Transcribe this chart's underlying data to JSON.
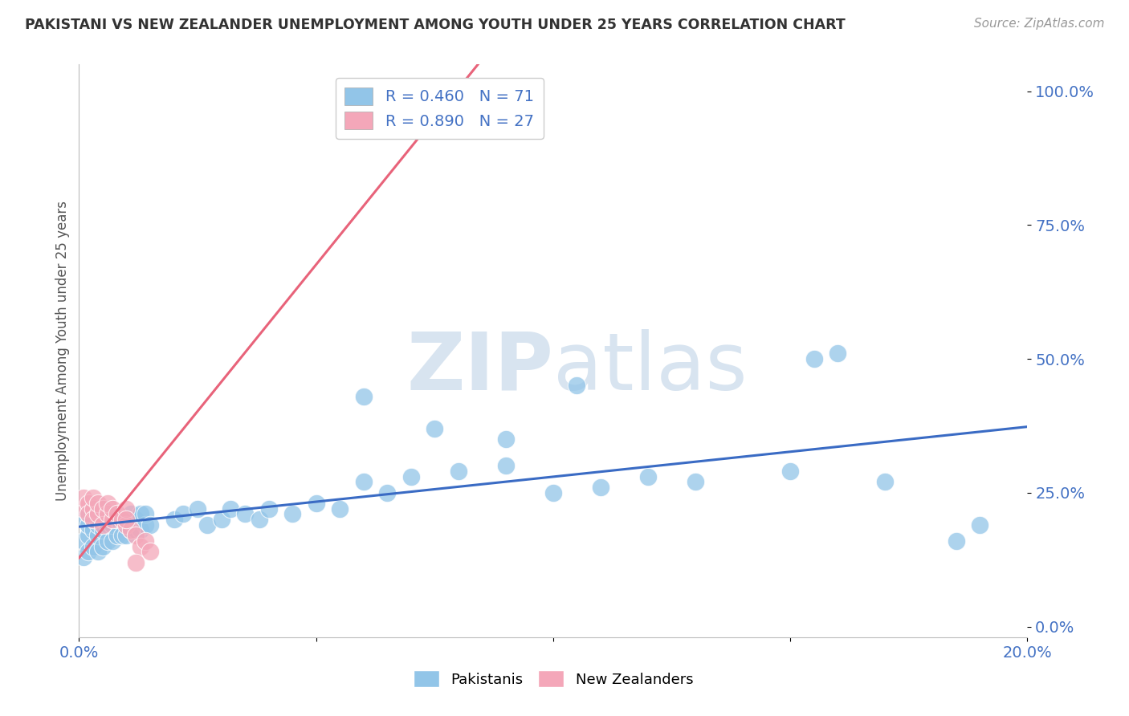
{
  "title": "PAKISTANI VS NEW ZEALANDER UNEMPLOYMENT AMONG YOUTH UNDER 25 YEARS CORRELATION CHART",
  "source": "Source: ZipAtlas.com",
  "ylabel": "Unemployment Among Youth under 25 years",
  "yticks": [
    "0.0%",
    "25.0%",
    "50.0%",
    "75.0%",
    "100.0%"
  ],
  "ytick_vals": [
    0.0,
    0.25,
    0.5,
    0.75,
    1.0
  ],
  "xlim": [
    0.0,
    0.2
  ],
  "ylim": [
    -0.02,
    1.05
  ],
  "legend_label1": "Pakistanis",
  "legend_label2": "New Zealanders",
  "R_pakistani": 0.46,
  "N_pakistani": 71,
  "R_nz": 0.89,
  "N_nz": 27,
  "color_pakistani": "#92C5E8",
  "color_nz": "#F4A7B9",
  "color_line_pakistani": "#3A6BC4",
  "color_line_nz": "#E8637A",
  "watermark_color": "#D8E4F0",
  "background_color": "#FFFFFF",
  "grid_color": "#DDDDDD",
  "title_color": "#333333",
  "axis_label_color": "#4472C4",
  "seed_pak": 42,
  "seed_nz": 17
}
